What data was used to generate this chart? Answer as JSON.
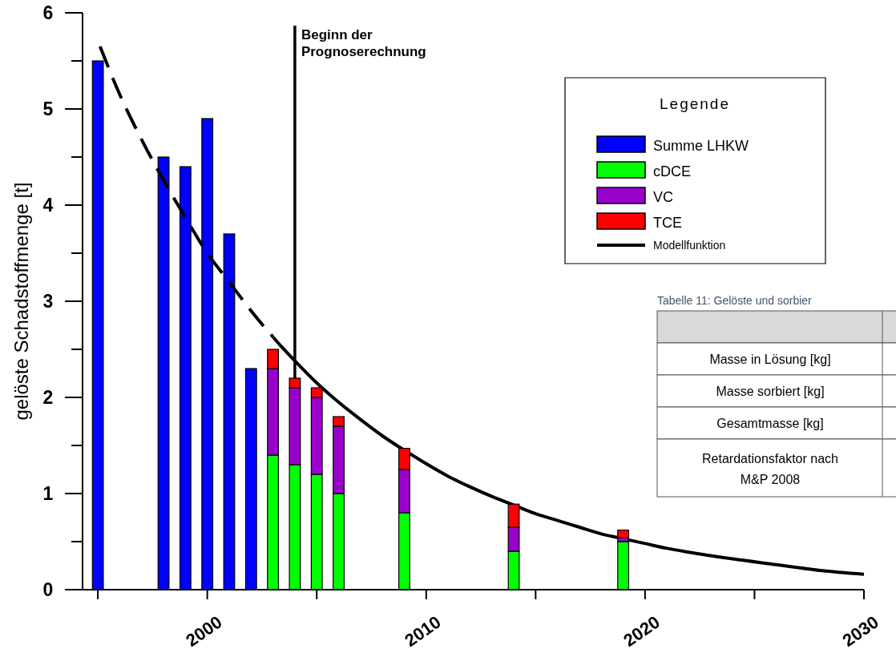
{
  "chart_data": {
    "type": "bar",
    "ylabel": "gelöste Schadstoffmenge [t]",
    "legend_title": "Legende",
    "legend": "top right",
    "stacked": true,
    "xlim": [
      1994.3,
      2030
    ],
    "xticks": [
      {
        "value": 1995,
        "label": null
      },
      2000,
      {
        "value": 2005,
        "label": null
      },
      2010,
      {
        "value": 2015,
        "label": null
      },
      2020,
      {
        "value": 2025,
        "label": null
      },
      2030
    ],
    "ylim": [
      0,
      6
    ],
    "yticks": [
      0,
      {
        "value": 0.5,
        "label": null
      },
      1,
      {
        "value": 1.5,
        "label": null
      },
      2,
      {
        "value": 2.5,
        "label": null
      },
      3,
      {
        "value": 3.5,
        "label": null
      },
      4,
      {
        "value": 4.5,
        "label": null
      },
      5,
      {
        "value": 5.5,
        "label": null
      },
      6
    ],
    "x": [
      1995,
      1998,
      1999,
      2000,
      2001,
      2002,
      2003,
      2004,
      2005,
      2006,
      2009,
      2014,
      2019
    ],
    "series": [
      {
        "name": "Summe LHKW",
        "color": "#0000ff",
        "values": [
          5.5,
          4.5,
          4.4,
          4.9,
          3.7,
          2.3,
          null,
          null,
          null,
          null,
          null,
          null,
          null
        ]
      },
      {
        "name": "cDCE",
        "color": "#00ff00",
        "values": [
          null,
          null,
          null,
          null,
          null,
          null,
          1.4,
          1.3,
          1.2,
          1.0,
          0.8,
          0.4,
          0.5
        ]
      },
      {
        "name": "VC",
        "color": "#9900cc",
        "values": [
          null,
          null,
          null,
          null,
          null,
          null,
          0.9,
          0.8,
          0.8,
          0.7,
          0.45,
          0.25,
          0.04
        ]
      },
      {
        "name": "TCE",
        "color": "#ff0000",
        "values": [
          null,
          null,
          null,
          null,
          null,
          null,
          0.2,
          0.1,
          0.1,
          0.1,
          0.22,
          0.24,
          0.08
        ]
      },
      {
        "type": "line",
        "line_style": "dashed",
        "color": "#000000",
        "x": [
          1995.1,
          1996,
          1997,
          1998,
          1999,
          2000,
          2001,
          2002,
          2003.3
        ],
        "values": [
          5.65,
          5.15,
          4.68,
          4.26,
          3.87,
          3.5,
          3.2,
          2.9,
          2.55
        ]
      },
      {
        "type": "line",
        "line_style": "solid",
        "name": "Modellfunktion",
        "color": "#000000",
        "x": [
          2003.3,
          2004,
          2005,
          2006,
          2007,
          2008,
          2009,
          2010,
          2011,
          2012,
          2013,
          2014,
          2015,
          2016,
          2017,
          2018,
          2019,
          2020,
          2021,
          2022,
          2024,
          2026,
          2028,
          2030
        ],
        "values": [
          2.55,
          2.38,
          2.15,
          1.95,
          1.77,
          1.6,
          1.45,
          1.31,
          1.18,
          1.07,
          0.97,
          0.88,
          0.79,
          0.72,
          0.65,
          0.58,
          0.53,
          0.48,
          0.43,
          0.39,
          0.32,
          0.26,
          0.2,
          0.16
        ]
      }
    ],
    "ref_lines": [
      {
        "axis": "x",
        "value": 2004,
        "label": "Beginn der\nPrognoserechnung",
        "color": "#000000"
      }
    ],
    "annotations": [
      "Tabelle 11: Gelöste und sorbier",
      "Masse in Lösung [kg]",
      "Masse sorbiert [kg]",
      "Gesamtmasse [kg]",
      "Retardationsfaktor nach\nM&P 2008"
    ]
  }
}
